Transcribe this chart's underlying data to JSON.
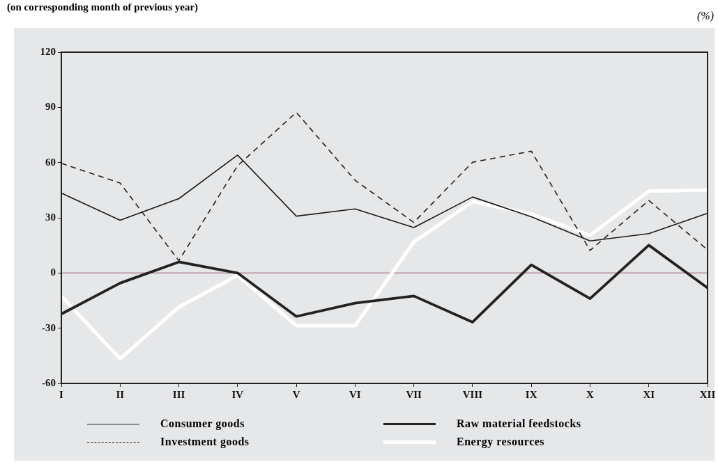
{
  "chart_data": {
    "type": "line",
    "subtitle": "(on corresponding month of previous year)",
    "ylabel": "(%)",
    "categories": [
      "I",
      "II",
      "III",
      "IV",
      "V",
      "VI",
      "VII",
      "VIII",
      "IX",
      "X",
      "XI",
      "XII"
    ],
    "series": [
      {
        "name": "Consumer goods",
        "color": "#1a1a1a",
        "line_style": "solid",
        "values": [
          43.4,
          28.7,
          40.4,
          64.1,
          30.9,
          34.8,
          24.7,
          41.3,
          30.6,
          17.4,
          21.4,
          32.5
        ]
      },
      {
        "name": "Investment goods",
        "color": "#2a2010",
        "line_style": "dashed",
        "values": [
          59.6,
          48.9,
          6.7,
          58.3,
          87.3,
          50.4,
          27.5,
          60.2,
          66.2,
          12.3,
          39.4,
          12.6
        ]
      },
      {
        "name": "Raw material feedstocks",
        "color": "#222222",
        "line_style": "solid",
        "values": [
          -22.3,
          -5.5,
          6.0,
          0,
          -23.6,
          -16.4,
          -12.5,
          -26.7,
          4.4,
          -13.9,
          15.1,
          -8.1
        ]
      },
      {
        "name": "Energy resources",
        "color": "#ffffff",
        "line_style": "solid",
        "values": [
          -12.6,
          -46.6,
          -18.5,
          -1.3,
          -28.6,
          -28.6,
          16.8,
          38.8,
          32,
          20.5,
          44.5,
          45.1
        ]
      }
    ],
    "ylim": [
      -60,
      120
    ],
    "yticks": [
      -60,
      -30,
      0,
      30,
      60,
      90,
      120
    ],
    "grid": false,
    "marker": "none",
    "legend": "bottom",
    "ref_lines": [
      {
        "axis": "y",
        "value": 0,
        "color": "#b48a9a"
      }
    ]
  }
}
